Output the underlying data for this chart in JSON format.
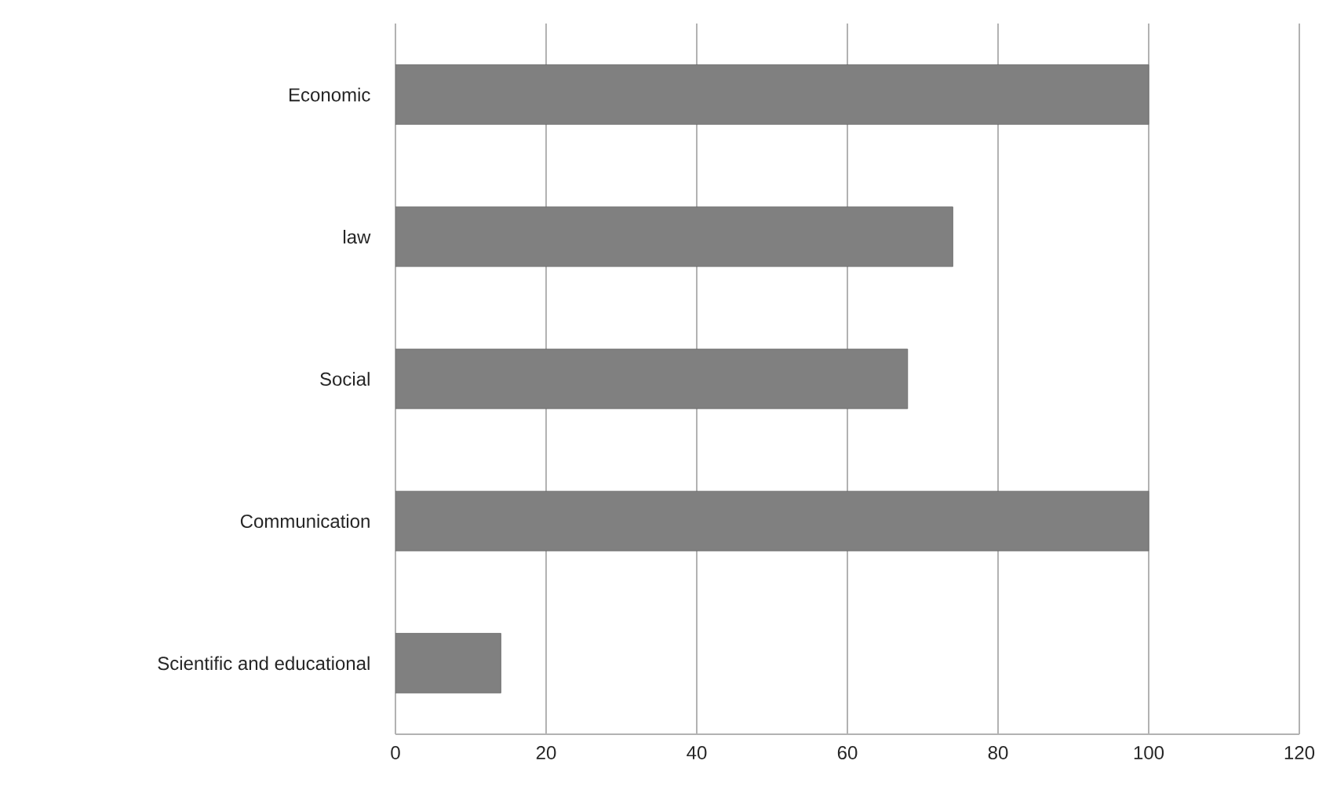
{
  "chart_data": {
    "type": "bar",
    "orientation": "horizontal",
    "categories": [
      "Economic",
      "law",
      "Social",
      "Communication",
      "Scientific and educational"
    ],
    "values": [
      100,
      74,
      68,
      100,
      14
    ],
    "color": "#808080",
    "xlim": [
      0,
      120
    ],
    "xticks": [
      0,
      20,
      40,
      60,
      80,
      100,
      120
    ],
    "grid": "x"
  }
}
